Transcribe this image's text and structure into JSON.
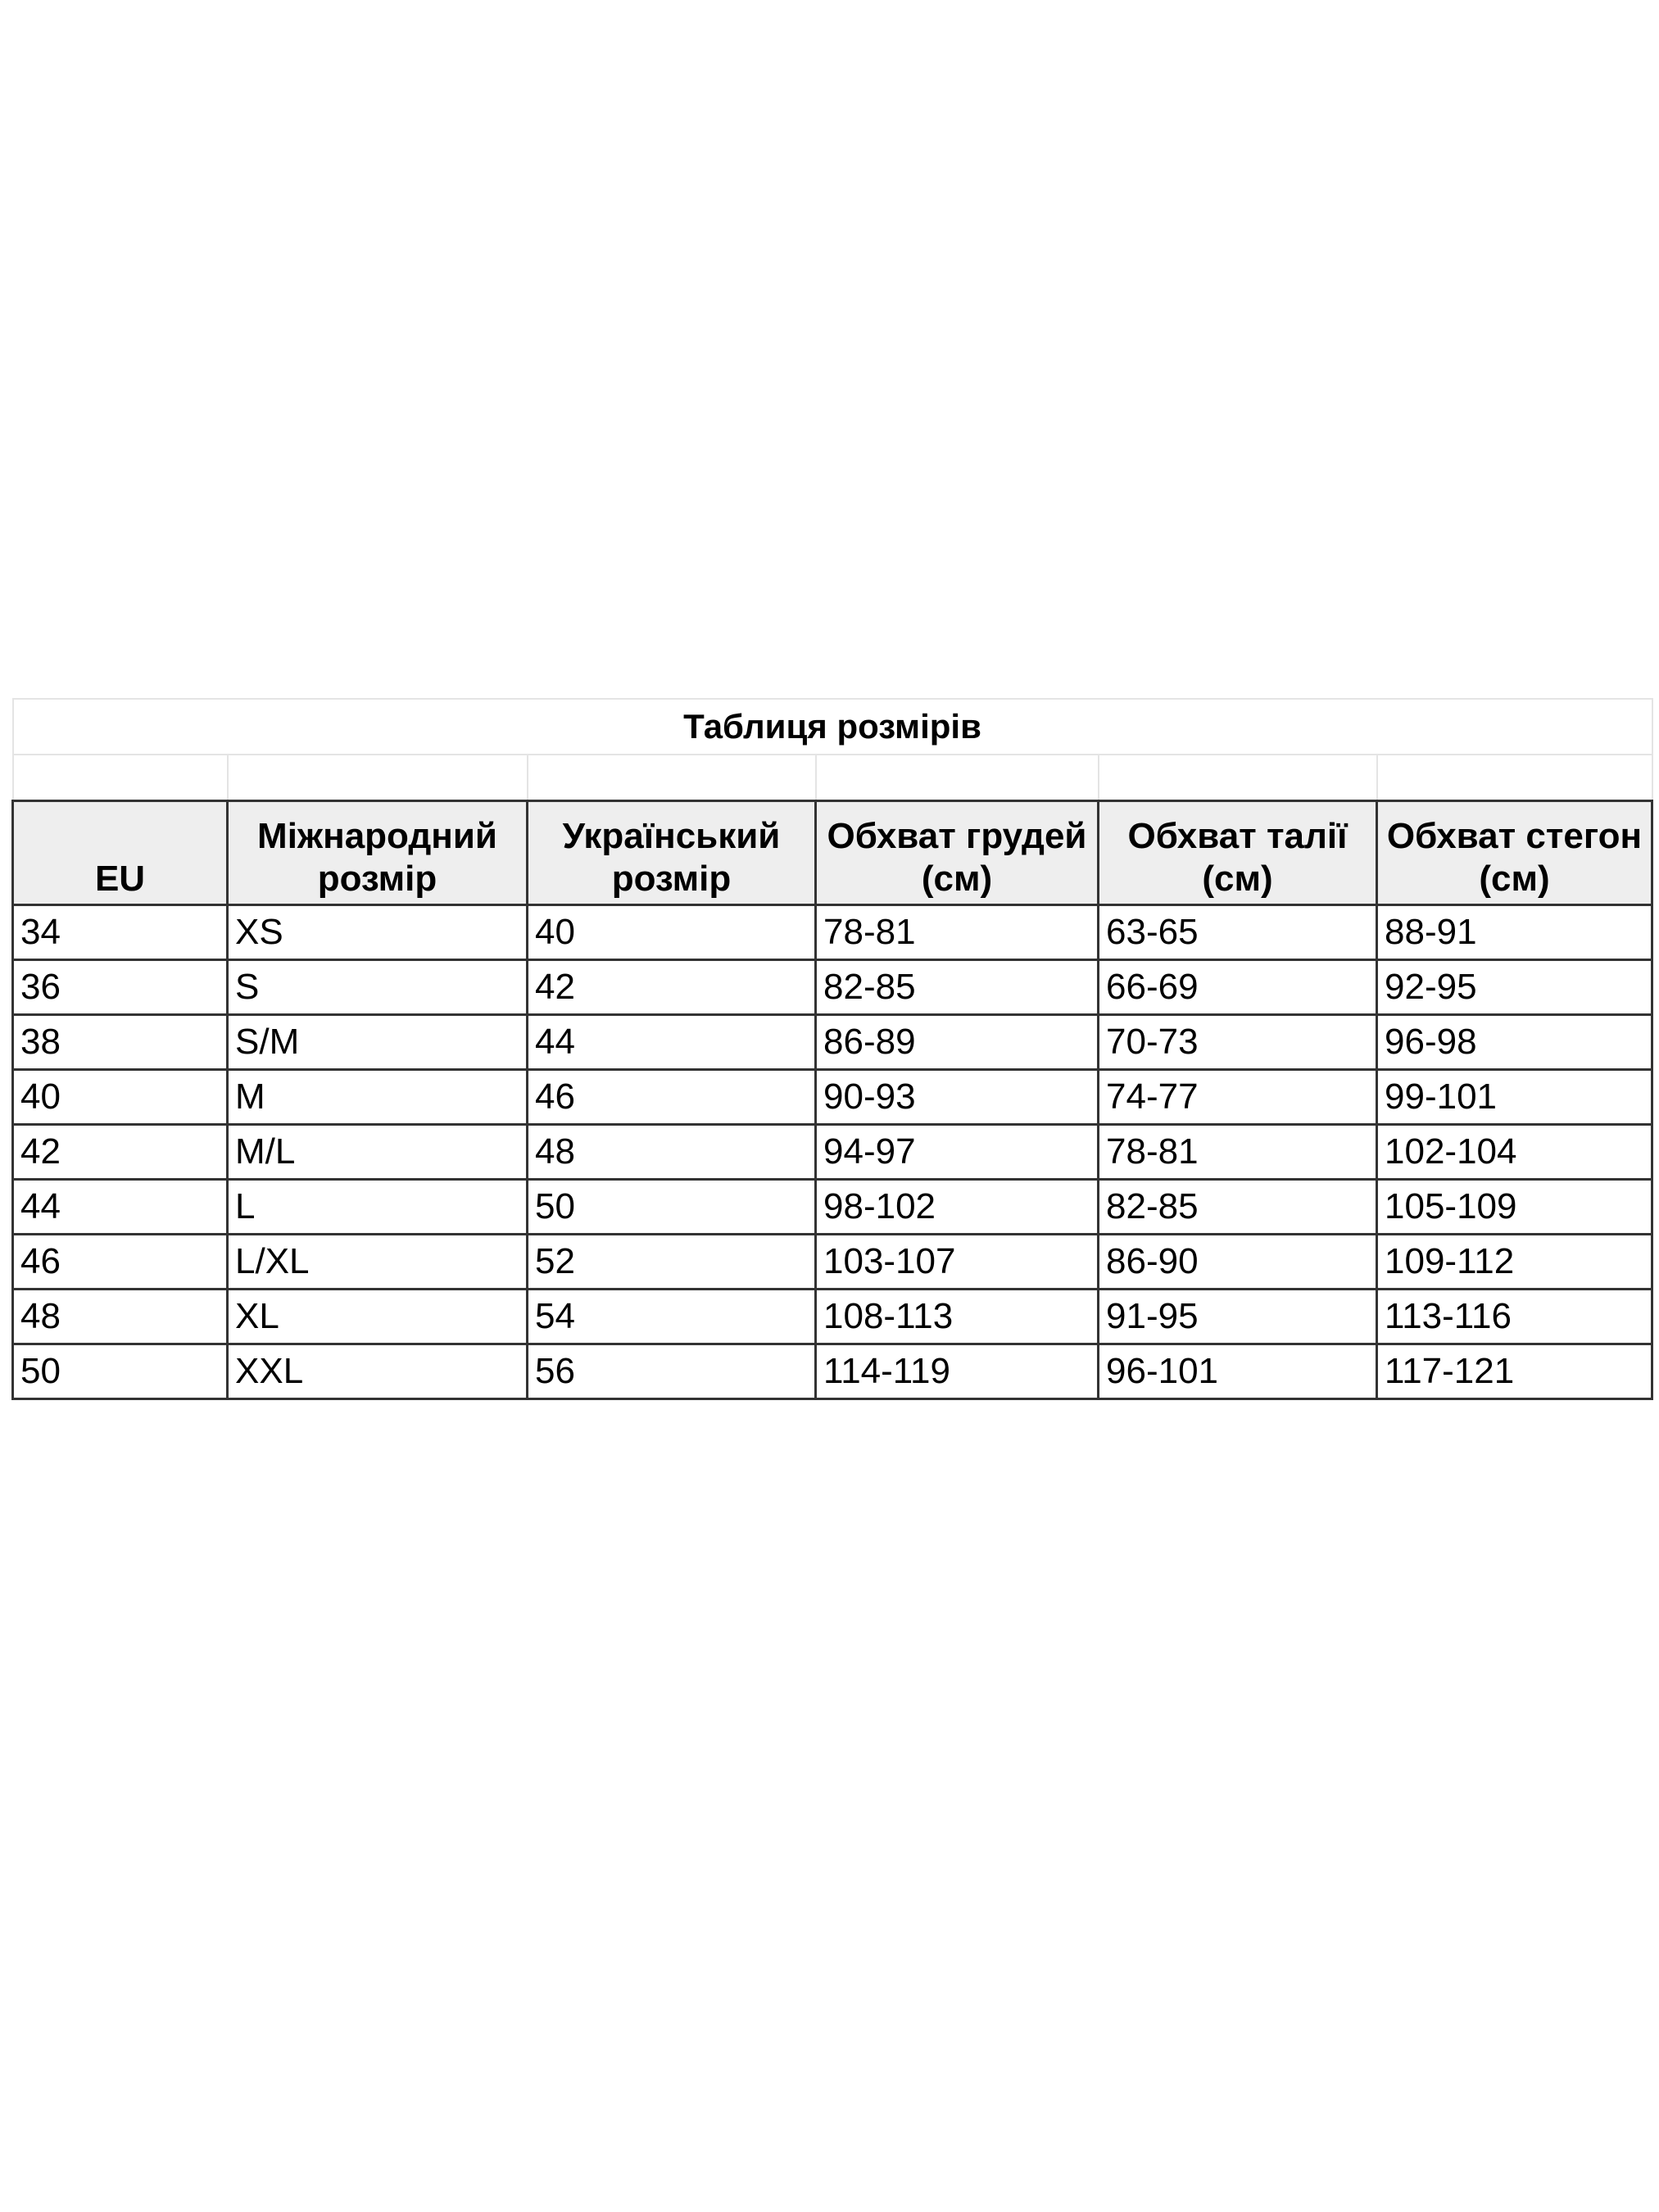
{
  "title": "Таблиця розмірів",
  "headers": [
    "EU",
    "Міжнародний розмір",
    "Український розмір",
    "Обхват грудей (см)",
    "Обхват талії (см)",
    "Обхват стегон (см)"
  ],
  "rows": [
    [
      "34",
      "XS",
      "40",
      "78-81",
      "63-65",
      "88-91"
    ],
    [
      "36",
      "S",
      "42",
      "82-85",
      "66-69",
      "92-95"
    ],
    [
      "38",
      "S/M",
      "44",
      "86-89",
      "70-73",
      "96-98"
    ],
    [
      "40",
      "M",
      "46",
      "90-93",
      "74-77",
      "99-101"
    ],
    [
      "42",
      "M/L",
      "48",
      "94-97",
      "78-81",
      "102-104"
    ],
    [
      "44",
      "L",
      "50",
      "98-102",
      "82-85",
      "105-109"
    ],
    [
      "46",
      "L/XL",
      "52",
      "103-107",
      "86-90",
      "109-112"
    ],
    [
      "48",
      "XL",
      "54",
      "108-113",
      "91-95",
      "113-116"
    ],
    [
      "50",
      "XXL",
      "56",
      "114-119",
      "96-101",
      "117-121"
    ]
  ]
}
